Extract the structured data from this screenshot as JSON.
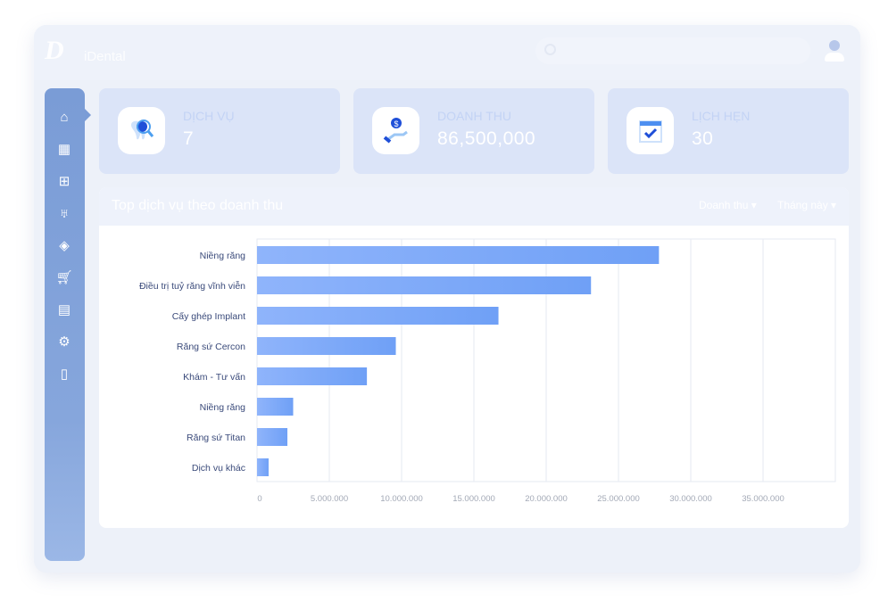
{
  "header": {
    "brand": "iDental",
    "logo_text": "D"
  },
  "sidebar": {
    "items": [
      {
        "icon": "home-icon"
      },
      {
        "icon": "calendar-icon"
      },
      {
        "icon": "medical-kit-icon"
      },
      {
        "icon": "tooth-icon"
      },
      {
        "icon": "box-icon"
      },
      {
        "icon": "cart-icon"
      },
      {
        "icon": "clipboard-icon"
      },
      {
        "icon": "settings-icon"
      },
      {
        "icon": "document-icon"
      }
    ]
  },
  "stats": [
    {
      "label": "DỊCH VỤ",
      "value": "7",
      "icon": "tooth-search-icon"
    },
    {
      "label": "DOANH THU",
      "value": "86,500,000",
      "icon": "money-hand-icon"
    },
    {
      "label": "LỊCH HẸN",
      "value": "30",
      "icon": "calendar-check-icon"
    }
  ],
  "panel": {
    "title": "Top dịch vụ theo doanh thu",
    "filter1": "Doanh thu",
    "filter2": "Tháng này"
  },
  "colors": {
    "bar_start": "#8fb4fb",
    "bar_end": "#6fa0f6",
    "sidebar": "#7a9cd6",
    "card": "#dbe4f8"
  },
  "chart_data": {
    "type": "bar",
    "orientation": "horizontal",
    "categories": [
      "Niềng răng",
      "Điều trị tuỷ răng vĩnh viễn",
      "Cấy ghép Implant",
      "Răng sứ Cercon",
      "Khám - Tư vấn",
      "Niềng răng",
      "Răng sứ Titan",
      "Dịch vụ khác"
    ],
    "values": [
      27800000,
      23100000,
      16700000,
      9600000,
      7600000,
      2500000,
      2100000,
      800000
    ],
    "xlim": [
      0,
      40000000
    ],
    "xticks": [
      "0",
      "5.000.000",
      "10.000.000",
      "15.000.000",
      "20.000.000",
      "25.000.000",
      "30.000.000",
      "35.000.000"
    ],
    "grid": true
  }
}
